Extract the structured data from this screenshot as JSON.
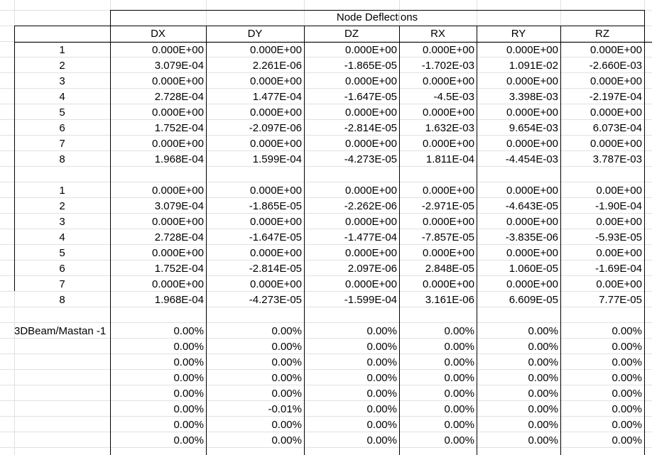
{
  "title": "Node Deflections",
  "columns": [
    "DX",
    "DY",
    "DZ",
    "RX",
    "RY",
    "RZ"
  ],
  "table1": {
    "rows": [
      [
        "1",
        "0.000E+00",
        "0.000E+00",
        "0.000E+00",
        "0.000E+00",
        "0.000E+00",
        "0.000E+00"
      ],
      [
        "2",
        "3.079E-04",
        "2.261E-06",
        "-1.865E-05",
        "-1.702E-03",
        "1.091E-02",
        "-2.660E-03"
      ],
      [
        "3",
        "0.000E+00",
        "0.000E+00",
        "0.000E+00",
        "0.000E+00",
        "0.000E+00",
        "0.000E+00"
      ],
      [
        "4",
        "2.728E-04",
        "1.477E-04",
        "-1.647E-05",
        "-4.5E-03",
        "3.398E-03",
        "-2.197E-04"
      ],
      [
        "5",
        "0.000E+00",
        "0.000E+00",
        "0.000E+00",
        "0.000E+00",
        "0.000E+00",
        "0.000E+00"
      ],
      [
        "6",
        "1.752E-04",
        "-2.097E-06",
        "-2.814E-05",
        "1.632E-03",
        "9.654E-03",
        "6.073E-04"
      ],
      [
        "7",
        "0.000E+00",
        "0.000E+00",
        "0.000E+00",
        "0.000E+00",
        "0.000E+00",
        "0.000E+00"
      ],
      [
        "8",
        "1.968E-04",
        "1.599E-04",
        "-4.273E-05",
        "1.811E-04",
        "-4.454E-03",
        "3.787E-03"
      ]
    ]
  },
  "table2": {
    "rows": [
      [
        "1",
        "0.000E+00",
        "0.000E+00",
        "0.000E+00",
        "0.000E+00",
        "0.000E+00",
        "0.00E+00"
      ],
      [
        "2",
        "3.079E-04",
        "-1.865E-05",
        "-2.262E-06",
        "-2.971E-05",
        "-4.643E-05",
        "-1.90E-04"
      ],
      [
        "3",
        "0.000E+00",
        "0.000E+00",
        "0.000E+00",
        "0.000E+00",
        "0.000E+00",
        "0.00E+00"
      ],
      [
        "4",
        "2.728E-04",
        "-1.647E-05",
        "-1.477E-04",
        "-7.857E-05",
        "-3.835E-06",
        "-5.93E-05"
      ],
      [
        "5",
        "0.000E+00",
        "0.000E+00",
        "0.000E+00",
        "0.000E+00",
        "0.000E+00",
        "0.00E+00"
      ],
      [
        "6",
        "1.752E-04",
        "-2.814E-05",
        "2.097E-06",
        "2.848E-05",
        "1.060E-05",
        "-1.69E-04"
      ],
      [
        "7",
        "0.000E+00",
        "0.000E+00",
        "0.000E+00",
        "0.000E+00",
        "0.000E+00",
        "0.00E+00"
      ],
      [
        "8",
        "1.968E-04",
        "-4.273E-05",
        "-1.599E-04",
        "3.161E-06",
        "6.609E-05",
        "7.77E-05"
      ]
    ]
  },
  "comparison": {
    "label": "3DBeam/Mastan -1",
    "rows": [
      [
        "0.00%",
        "0.00%",
        "0.00%",
        "0.00%",
        "0.00%",
        "0.00%"
      ],
      [
        "0.00%",
        "0.00%",
        "0.00%",
        "0.00%",
        "0.00%",
        "0.00%"
      ],
      [
        "0.00%",
        "0.00%",
        "0.00%",
        "0.00%",
        "0.00%",
        "0.00%"
      ],
      [
        "0.00%",
        "0.00%",
        "0.00%",
        "0.00%",
        "0.00%",
        "0.00%"
      ],
      [
        "0.00%",
        "0.00%",
        "0.00%",
        "0.00%",
        "0.00%",
        "0.00%"
      ],
      [
        "0.00%",
        "-0.01%",
        "0.00%",
        "0.00%",
        "0.00%",
        "0.00%"
      ],
      [
        "0.00%",
        "0.00%",
        "0.00%",
        "0.00%",
        "0.00%",
        "0.00%"
      ],
      [
        "0.00%",
        "0.00%",
        "0.00%",
        "0.00%",
        "0.00%",
        "0.00%"
      ]
    ]
  }
}
